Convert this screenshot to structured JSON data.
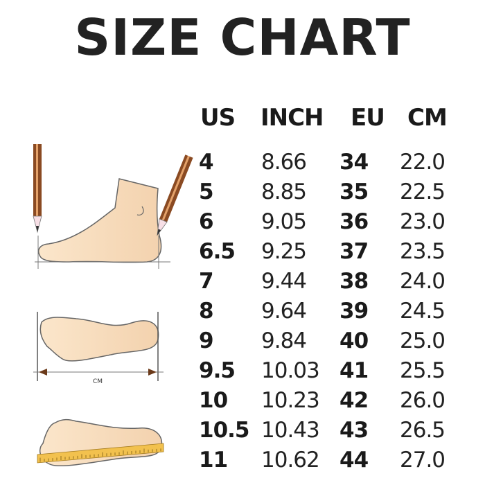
{
  "title": "SIZE CHART",
  "headers": {
    "us": "US",
    "inch": "INCH",
    "eu": "EU",
    "cm": "CM"
  },
  "rows": [
    {
      "us": "4",
      "inch": "8.66",
      "eu": "34",
      "cm": "22.0"
    },
    {
      "us": "5",
      "inch": "8.85",
      "eu": "35",
      "cm": "22.5"
    },
    {
      "us": "6",
      "inch": "9.05",
      "eu": "36",
      "cm": "23.0"
    },
    {
      "us": "6.5",
      "inch": "9.25",
      "eu": "37",
      "cm": "23.5"
    },
    {
      "us": "7",
      "inch": "9.44",
      "eu": "38",
      "cm": "24.0"
    },
    {
      "us": "8",
      "inch": "9.64",
      "eu": "39",
      "cm": "24.5"
    },
    {
      "us": "9",
      "inch": "9.84",
      "eu": "40",
      "cm": "25.0"
    },
    {
      "us": "9.5",
      "inch": "10.03",
      "eu": "41",
      "cm": "25.5"
    },
    {
      "us": "10",
      "inch": "10.23",
      "eu": "42",
      "cm": "26.0"
    },
    {
      "us": "10.5",
      "inch": "10.43",
      "eu": "43",
      "cm": "26.5"
    },
    {
      "us": "11",
      "inch": "10.62",
      "eu": "44",
      "cm": "27.0"
    }
  ],
  "illustration": {
    "measure_label": "CM",
    "skin_color": "#f8dfbf",
    "pencil_color": "#8a4a22",
    "ruler_color": "#f2c14e"
  }
}
